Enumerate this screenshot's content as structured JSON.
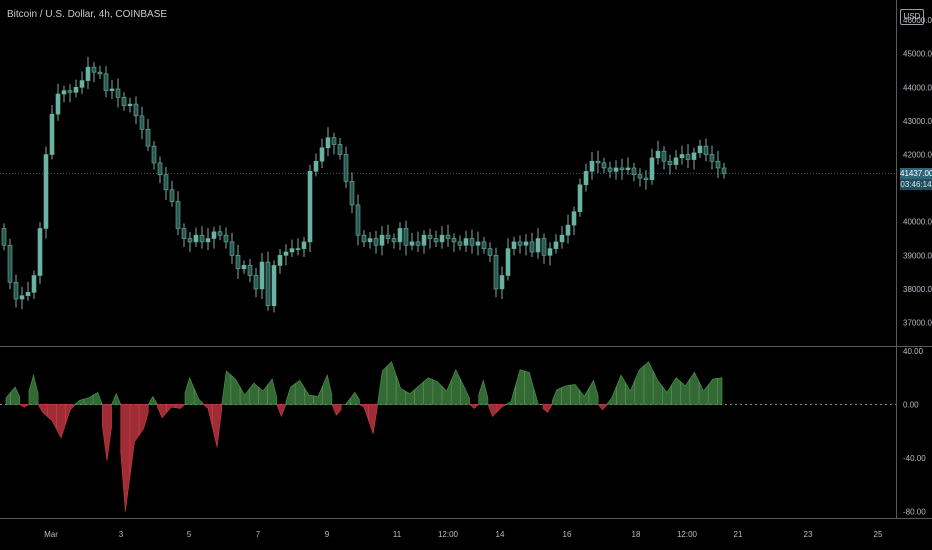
{
  "header": {
    "title": "Bitcoin / U.S. Dollar, 4h, COINBASE",
    "currency": "USD"
  },
  "price_panel": {
    "last_price": "41437.00",
    "countdown": "03:46:14",
    "y_ticks": [
      "45000.00",
      "44000.00",
      "43000.00",
      "42000.00",
      "40000.00",
      "39000.00",
      "38000.00",
      "37000.00"
    ],
    "top_partial_tick": "46000.00"
  },
  "oscillator_panel": {
    "y_ticks": [
      "40.00",
      "0.00",
      "-40.00",
      "-80.00"
    ]
  },
  "x_axis": {
    "ticks": [
      "Mar",
      "3",
      "5",
      "7",
      "9",
      "11",
      "12:00",
      "14",
      "16",
      "18",
      "12:00",
      "21",
      "23",
      "25"
    ]
  },
  "colors": {
    "background": "#000000",
    "candle_up": "#6ab3a2",
    "candle_down": "#2a5750",
    "wick": "#7fa9a0",
    "osc_positive": "#3d7a3d",
    "osc_negative": "#b0323c",
    "last_price_bg": "#2f6679",
    "axis_text": "#b8bcc4"
  },
  "chart_data": [
    {
      "type": "candlestick",
      "title": "Bitcoin / U.S. Dollar, 4h, COINBASE",
      "ylim": [
        36600,
        46300
      ],
      "last_price": 41437,
      "x_ticks": [
        "Mar",
        "3",
        "5",
        "7",
        "9",
        "11",
        "12:00",
        "14",
        "16",
        "18",
        "12:00",
        "21",
        "23",
        "25"
      ],
      "closes": [
        39300,
        38200,
        37700,
        37800,
        37900,
        38400,
        39800,
        42000,
        43200,
        43800,
        43900,
        43850,
        44000,
        44200,
        44600,
        44450,
        44400,
        43900,
        43950,
        43700,
        43450,
        43500,
        43150,
        42750,
        42250,
        41750,
        41400,
        40950,
        40600,
        39800,
        39500,
        39400,
        39600,
        39400,
        39500,
        39700,
        39600,
        39400,
        39000,
        38600,
        38700,
        38400,
        38000,
        38800,
        37500,
        38700,
        39000,
        39100,
        39200,
        39200,
        39400,
        41500,
        41800,
        42200,
        42500,
        42300,
        42000,
        41200,
        40500,
        39600,
        39400,
        39500,
        39300,
        39600,
        39500,
        39400,
        39800,
        39300,
        39400,
        39300,
        39600,
        39500,
        39400,
        39600,
        39500,
        39400,
        39300,
        39500,
        39300,
        39400,
        39200,
        39000,
        38000,
        38400,
        39200,
        39400,
        39300,
        39400,
        39100,
        39500,
        39000,
        39200,
        39400,
        39600,
        39900,
        40300,
        41100,
        41500,
        41800,
        41750,
        41600,
        41500,
        41600,
        41550,
        41600,
        41400,
        41300,
        41250,
        41900,
        42100,
        41800,
        41700,
        41900,
        42000,
        41850,
        42050,
        42250,
        42000,
        41800,
        41600,
        41437
      ],
      "opens": [
        39800,
        39300,
        38200,
        37700,
        37800,
        37900,
        38400,
        39800,
        42000,
        43200,
        43800,
        43900,
        43850,
        44000,
        44200,
        44600,
        44450,
        44400,
        43900,
        43950,
        43700,
        43450,
        43500,
        43150,
        42750,
        42250,
        41750,
        41400,
        40950,
        40600,
        39800,
        39500,
        39400,
        39600,
        39400,
        39500,
        39700,
        39600,
        39400,
        39000,
        38600,
        38700,
        38400,
        38000,
        38800,
        37500,
        38700,
        39000,
        39100,
        39200,
        39200,
        39400,
        41500,
        41800,
        42200,
        42500,
        42300,
        42000,
        41200,
        40500,
        39600,
        39400,
        39500,
        39300,
        39600,
        39500,
        39400,
        39800,
        39300,
        39400,
        39300,
        39600,
        39500,
        39400,
        39600,
        39500,
        39400,
        39300,
        39500,
        39300,
        39400,
        39200,
        39000,
        38000,
        38400,
        39200,
        39400,
        39300,
        39400,
        39100,
        39500,
        39000,
        39200,
        39400,
        39600,
        39900,
        40300,
        41100,
        41500,
        41800,
        41750,
        41600,
        41500,
        41600,
        41550,
        41600,
        41400,
        41300,
        41250,
        41900,
        42100,
        41800,
        41700,
        41900,
        42000,
        41850,
        42050,
        42250,
        42000,
        41800,
        41600
      ]
    },
    {
      "type": "area",
      "title": "",
      "ylim": [
        -85,
        43
      ],
      "zero_line": 0,
      "values": [
        5,
        13,
        -2,
        22,
        -6,
        -12,
        -25,
        -4,
        3,
        5,
        9,
        -42,
        8,
        -80,
        -28,
        -18,
        6,
        -10,
        -2,
        -3,
        20,
        4,
        -3,
        -32,
        25,
        19,
        7,
        16,
        10,
        19,
        -9,
        13,
        18,
        7,
        6,
        22,
        -8,
        0,
        9,
        -2,
        -22,
        25,
        32,
        12,
        8,
        14,
        20,
        17,
        10,
        26,
        12,
        -3,
        18,
        -9,
        -2,
        2,
        26,
        24,
        0,
        -6,
        11,
        14,
        15,
        6,
        18,
        -4,
        5,
        22,
        10,
        26,
        32,
        18,
        9,
        20,
        14,
        24,
        10,
        19,
        20
      ]
    }
  ]
}
